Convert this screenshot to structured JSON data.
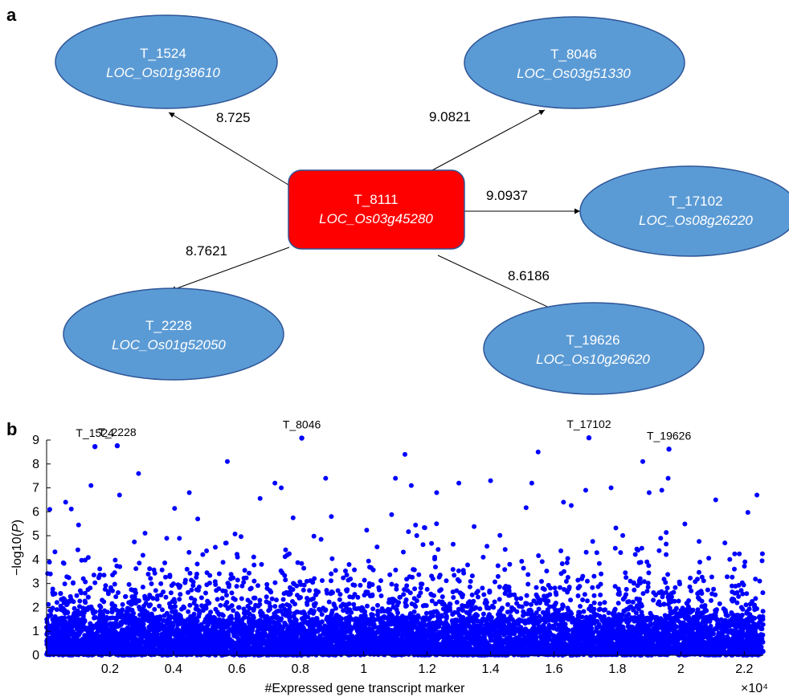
{
  "panel_a": {
    "label": "a",
    "center": {
      "id": "T_8111",
      "gene": "LOC_Os03g45280",
      "color": "#ff0000"
    },
    "nodes": [
      {
        "id": "T_1524",
        "gene": "LOC_Os01g38610",
        "edge": "8.725"
      },
      {
        "id": "T_8046",
        "gene": "LOC_Os03g51330",
        "edge": "9.0821"
      },
      {
        "id": "T_17102",
        "gene": "LOC_Os08g26220",
        "edge": "9.0937"
      },
      {
        "id": "T_2228",
        "gene": "LOC_Os01g52050",
        "edge": "8.7621"
      },
      {
        "id": "T_19626",
        "gene": "LOC_Os10g29620",
        "edge": "8.6186"
      }
    ],
    "node_color": "#5b9bd5"
  },
  "panel_b": {
    "label": "b",
    "chart_data": {
      "type": "scatter",
      "title": "",
      "xlabel": "#Expressed gene transcript marker",
      "x_multiplier": "×10⁴",
      "ylabel_prefix": "−log10(",
      "ylabel_var": "P",
      "ylabel_suffix": ")",
      "xlim": [
        0,
        22600
      ],
      "ylim": [
        0,
        9
      ],
      "x_ticks": [
        0.2,
        0.4,
        0.6,
        0.8,
        1,
        1.2,
        1.4,
        1.6,
        1.8,
        2,
        2.2
      ],
      "y_ticks": [
        0,
        1,
        2,
        3,
        4,
        5,
        6,
        7,
        8,
        9
      ],
      "point_color": "#0000ff",
      "grid": false,
      "annotated_points": [
        {
          "label": "T_1524",
          "x": 1524,
          "y": 8.725
        },
        {
          "label": "T_2228",
          "x": 2228,
          "y": 8.7621
        },
        {
          "label": "T_8046",
          "x": 8046,
          "y": 9.0821
        },
        {
          "label": "T_17102",
          "x": 17102,
          "y": 9.0937
        },
        {
          "label": "T_19626",
          "x": 19626,
          "y": 8.6186
        }
      ],
      "high_points": [
        {
          "x": 1400,
          "y": 7.1
        },
        {
          "x": 2300,
          "y": 6.7
        },
        {
          "x": 2900,
          "y": 7.6
        },
        {
          "x": 5700,
          "y": 8.1
        },
        {
          "x": 4500,
          "y": 6.8
        },
        {
          "x": 7200,
          "y": 7.2
        },
        {
          "x": 7400,
          "y": 7.0
        },
        {
          "x": 8800,
          "y": 7.4
        },
        {
          "x": 11000,
          "y": 7.4
        },
        {
          "x": 11300,
          "y": 8.4
        },
        {
          "x": 11500,
          "y": 7.1
        },
        {
          "x": 12300,
          "y": 6.8
        },
        {
          "x": 13000,
          "y": 7.2
        },
        {
          "x": 14000,
          "y": 7.3
        },
        {
          "x": 15300,
          "y": 7.2
        },
        {
          "x": 15500,
          "y": 8.5
        },
        {
          "x": 16300,
          "y": 6.4
        },
        {
          "x": 17000,
          "y": 6.9
        },
        {
          "x": 17800,
          "y": 7.0
        },
        {
          "x": 18800,
          "y": 8.1
        },
        {
          "x": 19000,
          "y": 6.8
        },
        {
          "x": 19400,
          "y": 6.9
        },
        {
          "x": 19600,
          "y": 7.4
        },
        {
          "x": 22400,
          "y": 6.7
        },
        {
          "x": 100,
          "y": 6.1
        },
        {
          "x": 600,
          "y": 6.4
        },
        {
          "x": 21100,
          "y": 6.5
        }
      ]
    }
  }
}
